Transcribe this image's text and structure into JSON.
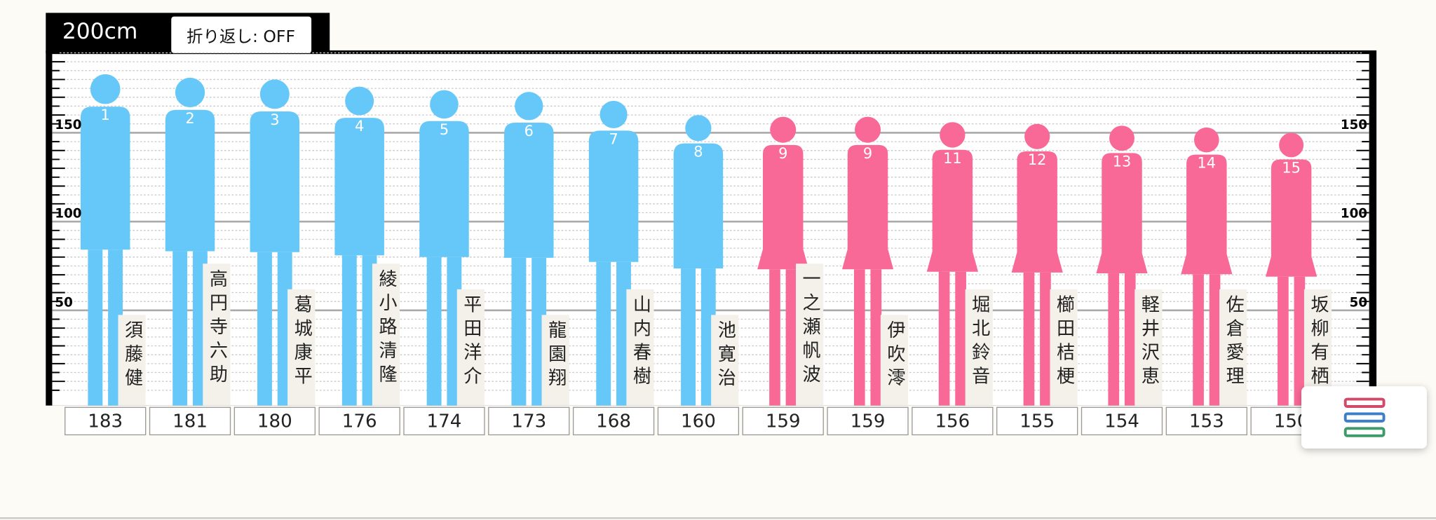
{
  "chart_data": {
    "type": "height-figures",
    "scale_label": "200cm",
    "wrap_button": "折り返し: OFF",
    "categories": [
      "須藤健",
      "高円寺六助",
      "葛城康平",
      "綾小路清隆",
      "平田洋介",
      "龍園翔",
      "山内春樹",
      "池寛治",
      "一之瀬帆波",
      "伊吹澪",
      "堀北鈴音",
      "櫛田桔梗",
      "軽井沢恵",
      "佐倉愛理",
      "坂柳有栖"
    ],
    "ranks": [
      "1",
      "2",
      "3",
      "4",
      "5",
      "6",
      "7",
      "8",
      "9",
      "9",
      "11",
      "12",
      "13",
      "14",
      "15"
    ],
    "values": [
      183,
      181,
      180,
      176,
      174,
      173,
      168,
      160,
      159,
      159,
      156,
      155,
      154,
      153,
      150
    ],
    "colors": [
      "#66c8f8",
      "#66c8f8",
      "#66c8f8",
      "#66c8f8",
      "#66c8f8",
      "#66c8f8",
      "#66c8f8",
      "#66c8f8",
      "#f96998",
      "#f96998",
      "#f96998",
      "#f96998",
      "#f96998",
      "#f96998",
      "#f96998"
    ],
    "shapes": [
      "male",
      "male",
      "male",
      "male",
      "male",
      "male",
      "male",
      "male",
      "female",
      "female",
      "female",
      "female",
      "female",
      "female",
      "female"
    ],
    "ylim": [
      0,
      200
    ],
    "yticks": [
      50,
      100,
      150
    ],
    "minor_yticks": [
      5,
      10,
      15,
      20,
      25,
      30,
      35,
      40,
      45,
      55,
      60,
      65,
      70,
      75,
      80,
      85,
      90,
      95,
      105,
      110,
      115,
      120,
      125,
      130,
      135,
      140,
      145,
      155,
      160,
      165,
      170,
      175,
      180,
      185,
      190,
      195
    ],
    "grid": true
  }
}
